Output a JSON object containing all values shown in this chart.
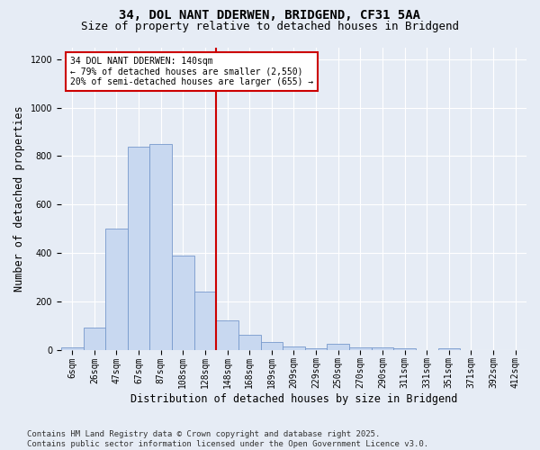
{
  "title_line1": "34, DOL NANT DDERWEN, BRIDGEND, CF31 5AA",
  "title_line2": "Size of property relative to detached houses in Bridgend",
  "xlabel": "Distribution of detached houses by size in Bridgend",
  "ylabel": "Number of detached properties",
  "bin_labels": [
    "6sqm",
    "26sqm",
    "47sqm",
    "67sqm",
    "87sqm",
    "108sqm",
    "128sqm",
    "148sqm",
    "168sqm",
    "189sqm",
    "209sqm",
    "229sqm",
    "250sqm",
    "270sqm",
    "290sqm",
    "311sqm",
    "331sqm",
    "351sqm",
    "371sqm",
    "392sqm",
    "412sqm"
  ],
  "bar_values": [
    8,
    90,
    500,
    840,
    850,
    390,
    240,
    120,
    60,
    30,
    15,
    5,
    25,
    10,
    8,
    5,
    0,
    5,
    0,
    0,
    0
  ],
  "bar_color": "#c8d8f0",
  "bar_edge_color": "#7799cc",
  "vline_color": "#cc0000",
  "vline_pos": 6.5,
  "annotation_text": "34 DOL NANT DDERWEN: 140sqm\n← 79% of detached houses are smaller (2,550)\n20% of semi-detached houses are larger (655) →",
  "annotation_box_color": "#ffffff",
  "annotation_box_edge": "#cc0000",
  "ylim": [
    0,
    1250
  ],
  "yticks": [
    0,
    200,
    400,
    600,
    800,
    1000,
    1200
  ],
  "footnote": "Contains HM Land Registry data © Crown copyright and database right 2025.\nContains public sector information licensed under the Open Government Licence v3.0.",
  "background_color": "#e6ecf5",
  "plot_bg_color": "#e6ecf5",
  "title_fontsize": 10,
  "subtitle_fontsize": 9,
  "tick_fontsize": 7,
  "label_fontsize": 8.5,
  "footnote_fontsize": 6.5
}
